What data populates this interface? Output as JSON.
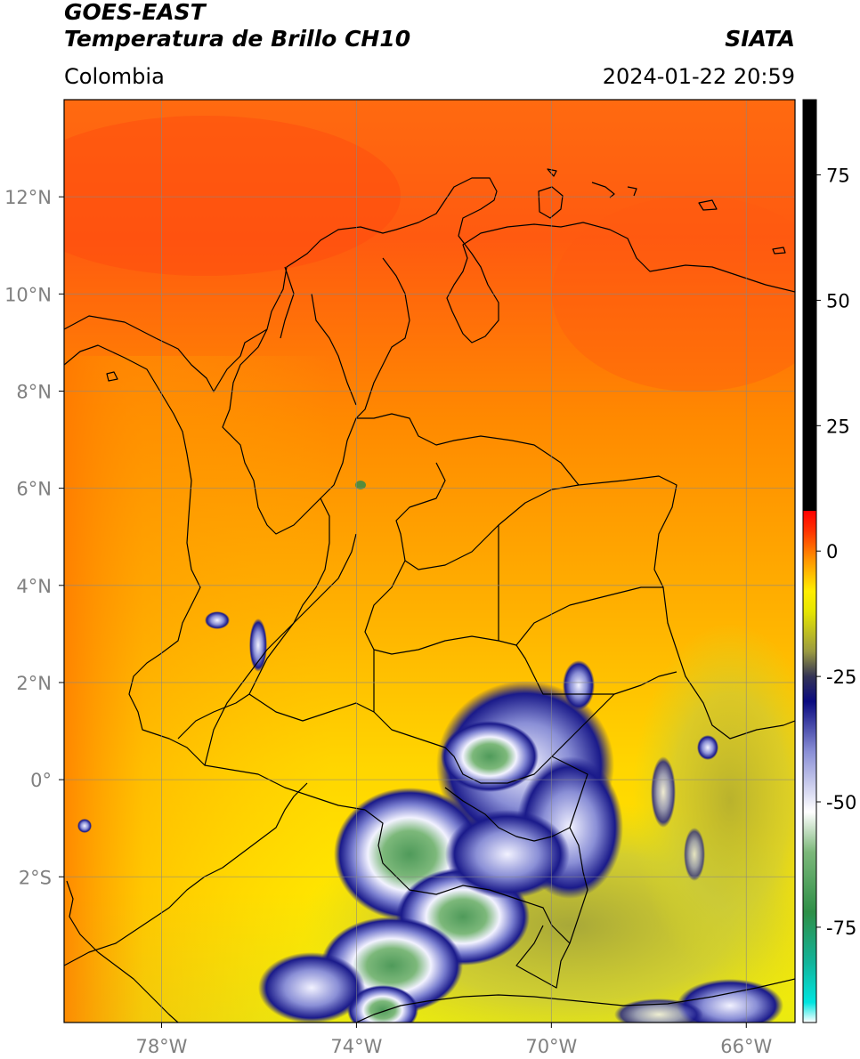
{
  "header": {
    "satellite": "GOES-EAST",
    "product": "Temperatura de Brillo CH10",
    "region": "Colombia",
    "source": "SIATA",
    "datetime": "2024-01-22 20:59"
  },
  "map": {
    "lon_range": [
      -80,
      -65
    ],
    "lat_range": [
      -5,
      14
    ],
    "lon_ticks": [
      {
        "value": -78,
        "label": "78°W"
      },
      {
        "value": -74,
        "label": "74°W"
      },
      {
        "value": -70,
        "label": "70°W"
      },
      {
        "value": -66,
        "label": "66°W"
      }
    ],
    "lat_ticks": [
      {
        "value": 12,
        "label": "12°N"
      },
      {
        "value": 10,
        "label": "10°N"
      },
      {
        "value": 8,
        "label": "8°N"
      },
      {
        "value": 6,
        "label": "6°N"
      },
      {
        "value": 4,
        "label": "4°N"
      },
      {
        "value": 2,
        "label": "2°N"
      },
      {
        "value": 0,
        "label": "0°"
      },
      {
        "value": -2,
        "label": "2°S"
      }
    ],
    "grid": true,
    "colorbar": {
      "range": [
        -94,
        90
      ],
      "ticks": [
        {
          "value": 75,
          "label": "75"
        },
        {
          "value": 50,
          "label": "50"
        },
        {
          "value": 25,
          "label": "25"
        },
        {
          "value": 0,
          "label": "0"
        },
        {
          "value": -25,
          "label": "-25"
        },
        {
          "value": -50,
          "label": "-50"
        },
        {
          "value": -75,
          "label": "-75"
        }
      ],
      "stops": [
        {
          "value": -94,
          "color": "#ffffff"
        },
        {
          "value": -90,
          "color": "#00e5e0"
        },
        {
          "value": -82,
          "color": "#12b49a"
        },
        {
          "value": -72,
          "color": "#2e8f47"
        },
        {
          "value": -60,
          "color": "#7cb87a"
        },
        {
          "value": -52,
          "color": "#ffffff"
        },
        {
          "value": -40,
          "color": "#8a8fd6"
        },
        {
          "value": -30,
          "color": "#0a0a80"
        },
        {
          "value": -25,
          "color": "#333355"
        },
        {
          "value": -20,
          "color": "#9a9a40"
        },
        {
          "value": -12,
          "color": "#e6e600"
        },
        {
          "value": -8,
          "color": "#ffee00"
        },
        {
          "value": -2,
          "color": "#ff9900"
        },
        {
          "value": 4,
          "color": "#ff3300"
        },
        {
          "value": 8,
          "color": "#ff0000"
        },
        {
          "value": 8.01,
          "color": "#000000"
        },
        {
          "value": 90,
          "color": "#000000"
        }
      ]
    },
    "colors": {
      "warm_north": "#ff5a10",
      "orange": "#ff8a00",
      "yellow": "#ffd500",
      "olive": "#c9c93a",
      "cloud_blue": "#1a1a8a",
      "cloud_white": "#f2f2ff",
      "cloud_green": "#4f9a5a"
    }
  }
}
